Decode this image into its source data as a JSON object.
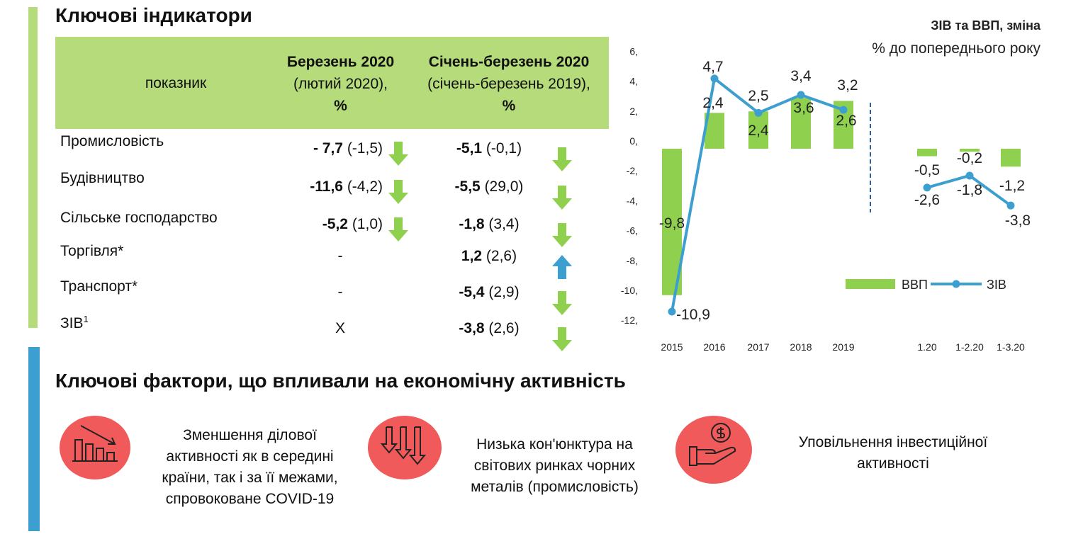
{
  "headings": {
    "indicators": "Ключові індикатори",
    "factors": "Ключові фактори, що впливали на економічну активність"
  },
  "table": {
    "col_indicator": "показник",
    "col_march": [
      "Березень 2020",
      "(лютий 2020),",
      "%"
    ],
    "col_q1": [
      "Січень-березень 2020",
      "(січень-березень 2019),",
      "%"
    ],
    "rows": [
      {
        "label": "Промисловість",
        "sup": "",
        "m_main": "- 7,7",
        "m_prev": " (-1,5)",
        "m_arrow": "down",
        "q_main": "-5,1",
        "q_prev": " (-0,1)",
        "q_arrow": "down"
      },
      {
        "label": "Будівництво",
        "sup": "",
        "m_main": "-11,6",
        "m_prev": " (-4,2)",
        "m_arrow": "down",
        "q_main": "-5,5",
        "q_prev": " (29,0)",
        "q_arrow": "down"
      },
      {
        "label": "Сільське господарство",
        "sup": "",
        "m_main": "-5,2",
        "m_prev": " (1,0)",
        "m_arrow": "down",
        "q_main": "-1,8",
        "q_prev": " (3,4)",
        "q_arrow": "down"
      },
      {
        "label": "Торгівля*",
        "sup": "",
        "m_text": "-",
        "q_main": "1,2",
        "q_prev": " (2,6)",
        "q_arrow": "up"
      },
      {
        "label": "Транспорт*",
        "sup": "",
        "m_text": "-",
        "q_main": "-5,4",
        "q_prev": " (2,9)",
        "q_arrow": "down"
      },
      {
        "label": "ЗІВ",
        "sup": "1",
        "m_text": "Х",
        "q_main": "-3,8",
        "q_prev": " (2,6)",
        "q_arrow": "down"
      }
    ]
  },
  "chart_data": {
    "type": "bar",
    "title": "ЗІВ та ВВП, зміна",
    "subtitle": "% до попереднього року",
    "categories": [
      "2015",
      "2016",
      "2017",
      "2018",
      "2019",
      "1.20",
      "1-2.20",
      "1-3.20"
    ],
    "series": [
      {
        "name": "ВВП",
        "type": "bar",
        "values": [
          -9.8,
          2.4,
          2.5,
          3.4,
          3.2,
          -0.5,
          -0.2,
          -1.2
        ],
        "labels": [
          "-9,8",
          "2,4",
          "2,5",
          "3,4",
          "3,2",
          "-0,5",
          "-0,2",
          "-1,2"
        ]
      },
      {
        "name": "ЗІВ",
        "type": "line",
        "values": [
          -10.9,
          4.7,
          2.4,
          3.6,
          2.6,
          -2.6,
          -1.8,
          -3.8
        ],
        "labels": [
          "-10,9",
          "4,7",
          "2,4",
          "3,6",
          "2,6",
          "-2,6",
          "-1,8",
          "-3,8"
        ]
      }
    ],
    "y_ticks": [
      "6,",
      "4,",
      "2,",
      "0,",
      "-2,",
      "-4,",
      "-6,",
      "-8,",
      "-10,",
      "-12,"
    ],
    "ylim": [
      -12,
      6
    ],
    "legend_position": "bottom-right",
    "colors": {
      "bar": "#8fd14f",
      "line": "#3d9fd0",
      "divider": "#2e5f9e"
    }
  },
  "factors": [
    {
      "icon": "declining-bars-icon",
      "text": [
        "Зменшення ділової",
        "активності як в середині",
        "країни, так і за її межами,",
        "спровоковане COVID-19"
      ]
    },
    {
      "icon": "down-arrows-icon",
      "text": [
        "Низька кон'юнктура на",
        "світових ринках чорних",
        "металів (промисловість)"
      ]
    },
    {
      "icon": "hand-coin-icon",
      "text": [
        "Уповільнення інвестиційної",
        "активності"
      ]
    }
  ],
  "colors": {
    "green": "#b5db7a",
    "arrow_green": "#8fd14f",
    "arrow_blue": "#3d9fd0",
    "red": "#f05a5a"
  }
}
